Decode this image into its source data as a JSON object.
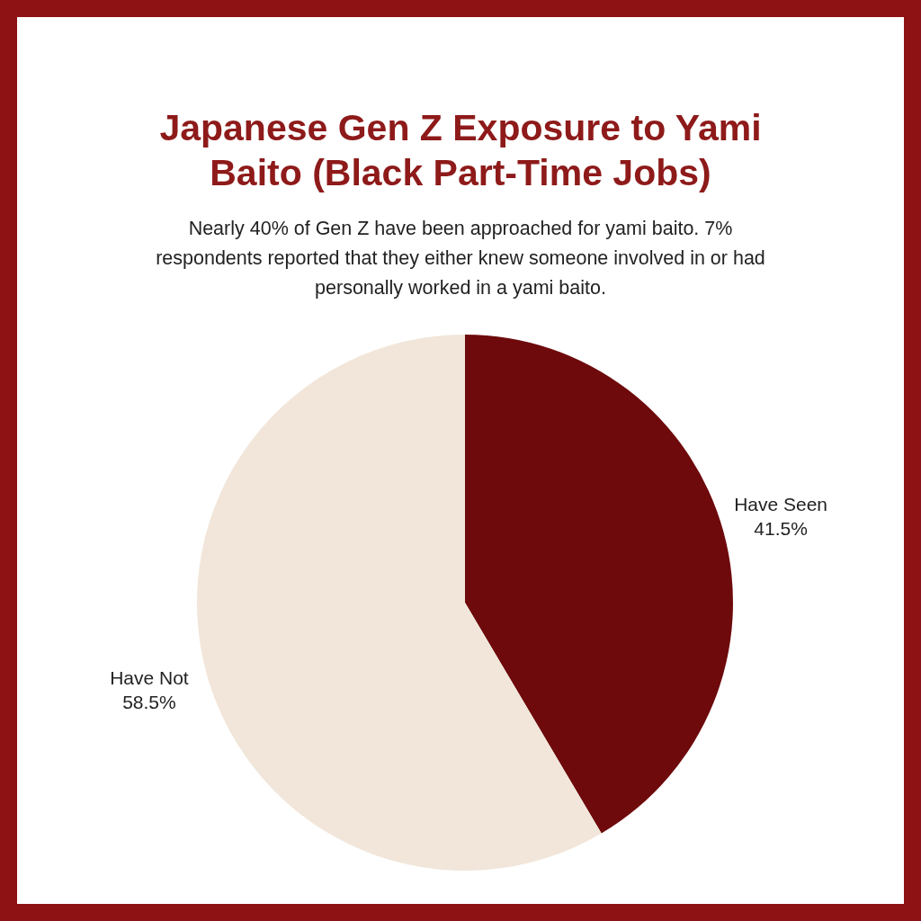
{
  "chart_data": {
    "type": "pie",
    "title": "Japanese Gen Z Exposure to Yami Baito (Black Part-Time Jobs)",
    "subtitle": "Nearly 40% of Gen Z have been approached for yami baito. 7% respondents reported that they either knew someone involved in or had personally worked in a yami baito.",
    "categories": [
      "Have Seen",
      "Have Not"
    ],
    "values": [
      41.5,
      58.5
    ],
    "colors": [
      "#6e0a0c",
      "#f1e6d9"
    ],
    "value_labels": [
      "41.5%",
      "58.5%"
    ]
  }
}
